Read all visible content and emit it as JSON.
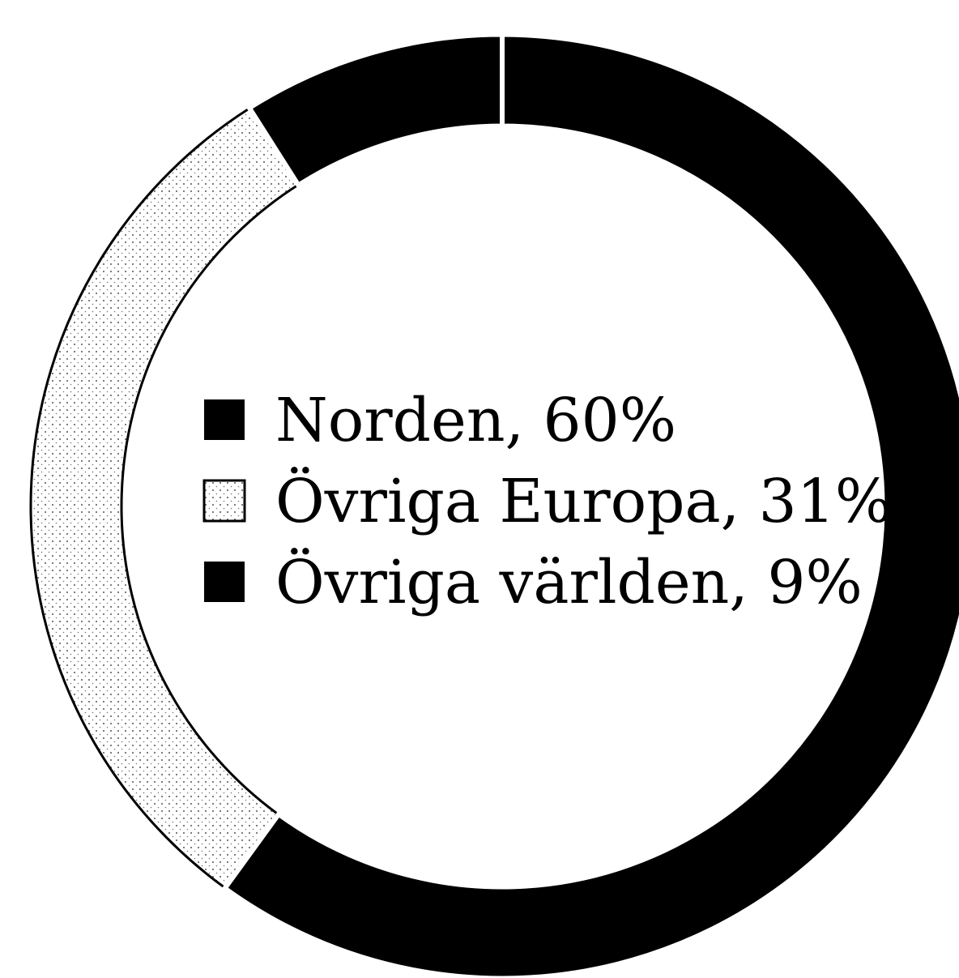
{
  "chart_data": {
    "type": "pie",
    "style": "donut",
    "slices": [
      {
        "label": "Norden, 60%",
        "name": "Norden",
        "value": 60,
        "color": "#000000",
        "pattern": "solid"
      },
      {
        "label": "Övriga Europa, 31%",
        "name": "Övriga Europa",
        "value": 31,
        "color": "#ffffff",
        "pattern": "dotted"
      },
      {
        "label": "Övriga världen, 9%",
        "name": "Övriga världen",
        "value": 9,
        "color": "#000000",
        "pattern": "solid"
      }
    ],
    "legend_position": "center",
    "start_angle": "top",
    "direction": "clockwise"
  }
}
